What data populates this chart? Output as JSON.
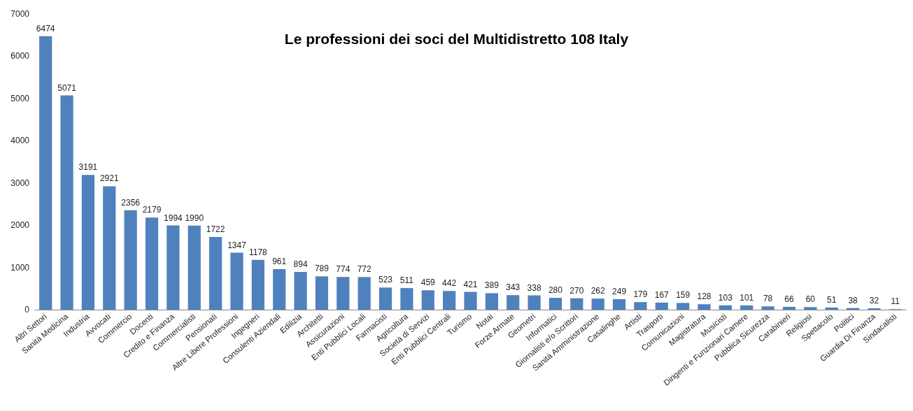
{
  "chart_data": {
    "type": "bar",
    "title": "Le professioni dei soci del Multidistretto 108 Italy",
    "categories": [
      "Altri Settori",
      "Sanità Medicina",
      "Industria",
      "Avvocati",
      "Commercio",
      "Docenti",
      "Credito e Finanza",
      "Commercialisti",
      "Pensionati",
      "Altre Libere Professioni",
      "Ingegneri",
      "Consulenti Aziendali",
      "Edilizia",
      "Architetti",
      "Assicurazioni",
      "Enti Pubblici Locali",
      "Farmacisti",
      "Agricoltura",
      "Società di Servizi",
      "Enti Pubblici Centrali",
      "Turismo",
      "Notai",
      "Forze Armate",
      "Geometri",
      "Informatici",
      "Giornalisti e/o Scrittori",
      "Sanità Amministrazione",
      "Casalinghe",
      "Artisti",
      "Trasporti",
      "Comunicazioni",
      "Magistratura",
      "Musicisti",
      "Dirigenti e Funzionari Camere",
      "Pubblica Sicurezza",
      "Carabinieri",
      "Religiosi",
      "Spettacolo",
      "Politici",
      "Guardia Di Finanza",
      "Sindacalisti"
    ],
    "values": [
      6474,
      5071,
      3191,
      2921,
      2356,
      2179,
      1994,
      1990,
      1722,
      1347,
      1178,
      961,
      894,
      789,
      774,
      772,
      523,
      511,
      459,
      442,
      421,
      389,
      343,
      338,
      280,
      270,
      262,
      249,
      179,
      167,
      159,
      128,
      103,
      101,
      78,
      66,
      60,
      51,
      38,
      32,
      11
    ],
    "color": "#4f81bd",
    "ylim": [
      0,
      7000
    ],
    "yticks": [
      0,
      1000,
      2000,
      3000,
      4000,
      5000,
      6000,
      7000
    ],
    "grid": false,
    "data_labels": true
  }
}
